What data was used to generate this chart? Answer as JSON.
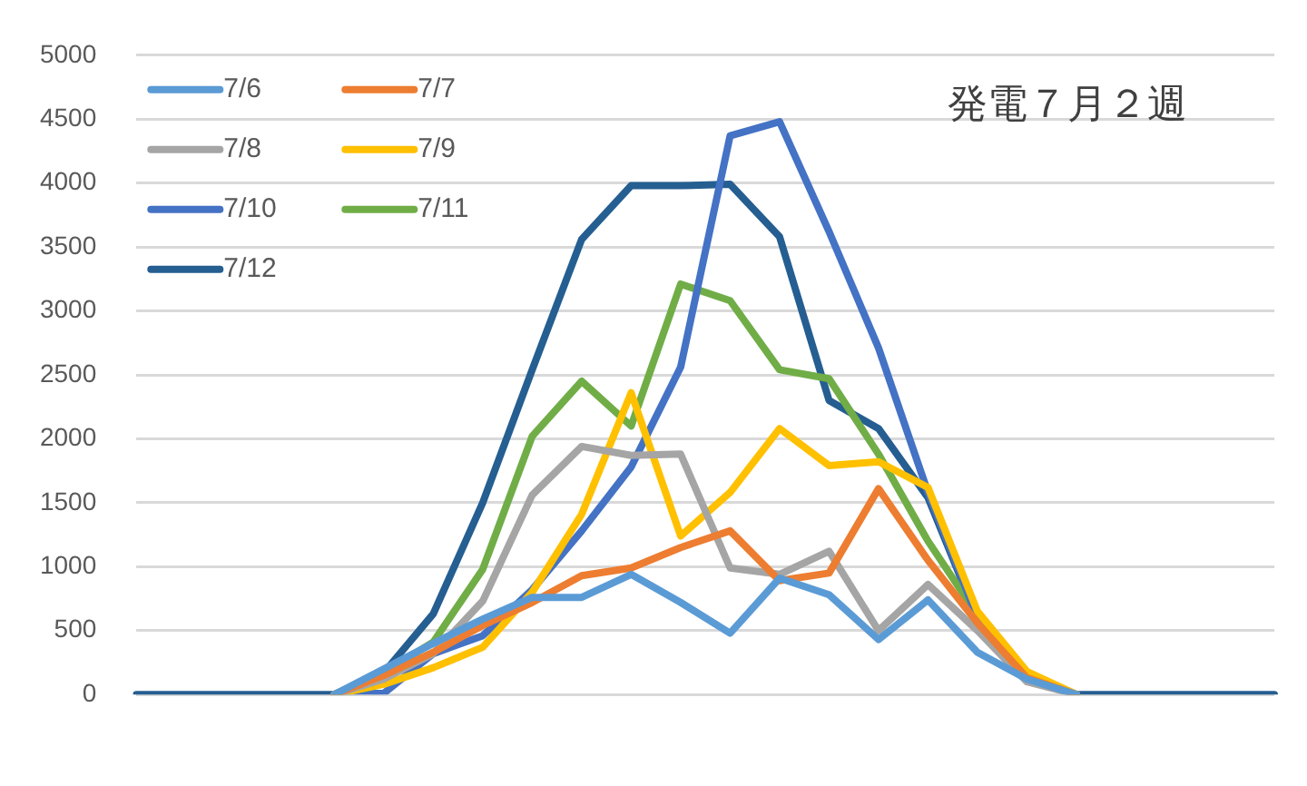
{
  "chart_data": {
    "type": "line",
    "title": "発電７月２週",
    "categories": [
      null,
      null,
      null,
      null,
      null,
      null,
      null,
      null,
      null,
      null,
      null,
      null,
      null,
      null,
      null,
      null,
      null,
      null,
      null,
      null,
      null,
      null,
      null,
      null
    ],
    "ylim": [
      0,
      5000
    ],
    "yticks": [
      0,
      500,
      1000,
      1500,
      2000,
      2500,
      3000,
      3500,
      4000,
      4500,
      5000
    ],
    "grid": "y",
    "legend": "top left",
    "marker": "none",
    "line_style": "solid",
    "series": [
      {
        "name": "7/6",
        "color": "#5b9bd5",
        "values": [
          null,
          null,
          null,
          null,
          0,
          200,
          400,
          590,
          760,
          760,
          940,
          720,
          480,
          910,
          780,
          430,
          740,
          330,
          120,
          0,
          null,
          null,
          null,
          null
        ]
      },
      {
        "name": "7/7",
        "color": "#ed7d31",
        "values": [
          null,
          null,
          null,
          null,
          0,
          150,
          330,
          540,
          720,
          930,
          990,
          1150,
          1280,
          890,
          950,
          1610,
          1050,
          560,
          130,
          0,
          null,
          null,
          null,
          null
        ]
      },
      {
        "name": "7/8",
        "color": "#a5a5a5",
        "values": [
          null,
          null,
          null,
          null,
          0,
          120,
          320,
          730,
          1560,
          1940,
          1870,
          1880,
          990,
          940,
          1120,
          500,
          860,
          500,
          100,
          0,
          null,
          null,
          null,
          null
        ]
      },
      {
        "name": "7/9",
        "color": "#ffc000",
        "values": [
          null,
          null,
          null,
          null,
          0,
          80,
          210,
          370,
          800,
          1410,
          2360,
          1240,
          1580,
          2080,
          1790,
          1820,
          1620,
          650,
          180,
          0,
          null,
          null,
          null,
          null
        ]
      },
      {
        "name": "7/10",
        "color": "#4472c4",
        "values": [
          null,
          null,
          null,
          null,
          0,
          10,
          320,
          460,
          820,
          1280,
          1780,
          2560,
          4370,
          4480,
          3620,
          2710,
          1580,
          600,
          150,
          0,
          null,
          null,
          null,
          null
        ]
      },
      {
        "name": "7/11",
        "color": "#70ad47",
        "values": [
          null,
          null,
          null,
          null,
          0,
          170,
          410,
          980,
          2020,
          2450,
          2100,
          3210,
          3080,
          2540,
          2470,
          1880,
          1200,
          620,
          170,
          0,
          null,
          null,
          null,
          null
        ]
      },
      {
        "name": "7/12",
        "color": "#255e91",
        "values": [
          0,
          0,
          0,
          0,
          0,
          170,
          630,
          1500,
          2540,
          3560,
          3980,
          3980,
          3990,
          3580,
          2300,
          2080,
          1540,
          590,
          130,
          0,
          0,
          0,
          0,
          0
        ]
      }
    ]
  }
}
